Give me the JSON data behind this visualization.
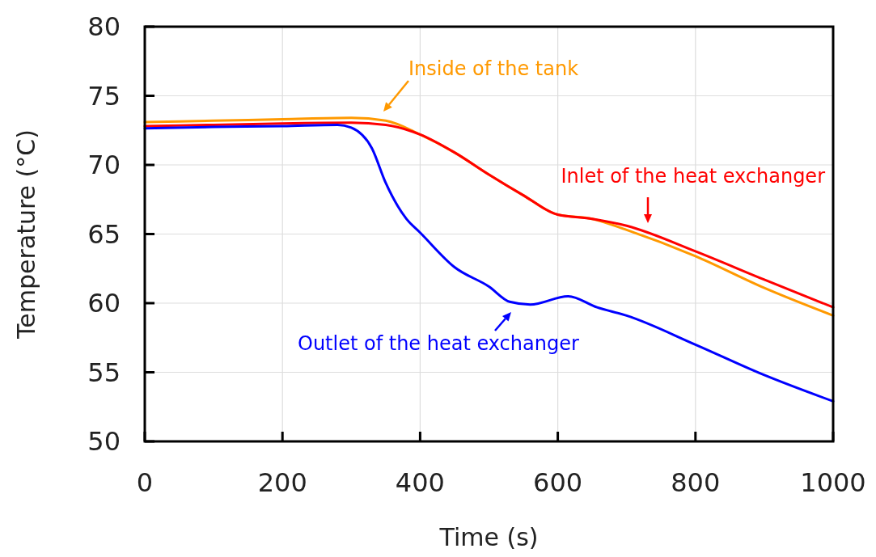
{
  "chart_data": {
    "type": "line",
    "xlabel": "Time (s)",
    "ylabel": "Temperature (°C)",
    "xlim": [
      0,
      1000
    ],
    "xticks": [
      0,
      200,
      400,
      600,
      800,
      1000
    ],
    "ylim": [
      50,
      80
    ],
    "yticks": [
      50,
      55,
      60,
      65,
      70,
      75,
      80
    ],
    "grid": true,
    "line_style": "solid",
    "marker": "none",
    "series": [
      {
        "name": "Inside of the tank",
        "color": "#ff9900",
        "x": [
          0,
          100,
          200,
          300,
          350,
          400,
          450,
          500,
          550,
          600,
          650,
          700,
          800,
          900,
          1000
        ],
        "values": [
          73.1,
          73.2,
          73.3,
          73.4,
          73.2,
          72.2,
          70.9,
          69.3,
          67.8,
          66.4,
          66.1,
          65.3,
          63.4,
          61.1,
          59.1
        ]
      },
      {
        "name": "Inlet of the heat exchanger",
        "color": "#ff0000",
        "x": [
          0,
          100,
          200,
          300,
          350,
          400,
          450,
          500,
          550,
          600,
          650,
          700,
          800,
          900,
          1000
        ],
        "values": [
          72.8,
          72.9,
          73.0,
          73.05,
          72.9,
          72.2,
          70.9,
          69.3,
          67.8,
          66.4,
          66.1,
          65.6,
          63.75,
          61.7,
          59.7
        ]
      },
      {
        "name": "Outlet of the heat exchanger",
        "color": "#0000ff",
        "x": [
          0,
          100,
          200,
          280,
          300,
          330,
          350,
          380,
          400,
          450,
          500,
          530,
          560,
          615,
          657,
          700,
          800,
          900,
          1000
        ],
        "values": [
          72.65,
          72.75,
          72.8,
          72.9,
          72.7,
          71.2,
          68.7,
          66.1,
          65.1,
          62.6,
          61.2,
          60.1,
          59.9,
          60.5,
          59.7,
          59.1,
          57.0,
          54.8,
          52.9
        ]
      }
    ]
  }
}
